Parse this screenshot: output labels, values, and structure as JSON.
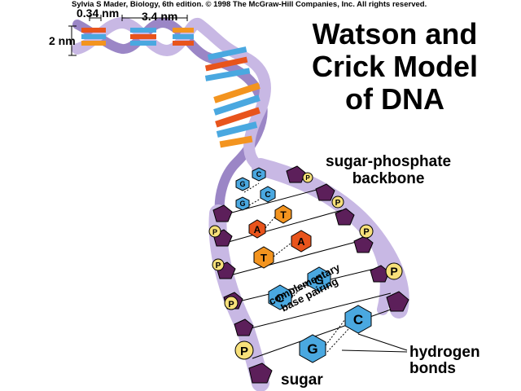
{
  "copyright": "Sylvia S Mader, Biology, 6th edition. © 1998  The McGraw-Hill Companies, Inc. All rights reserved.",
  "title": {
    "line1": "Watson and",
    "line2": "Crick Model",
    "line3": "of DNA"
  },
  "labels": {
    "backbone_line1": "sugar-phosphate",
    "backbone_line2": "backbone",
    "complementary_line1": "complementary",
    "complementary_line2": "base pairing",
    "hydrogen_line1": "hydrogen",
    "hydrogen_line2": "bonds",
    "sugar": "sugar"
  },
  "dimensions": {
    "width": "2 nm",
    "rise": "0.34 nm",
    "pitch": "3.4 nm"
  },
  "phosphate_symbol": "P",
  "base_pairs": [
    {
      "left": "G",
      "right": "C"
    },
    {
      "left": "G",
      "right": "C"
    },
    {
      "left": "A",
      "right": "T"
    },
    {
      "left": "T",
      "right": "A"
    },
    {
      "left": "C",
      "right": "G"
    },
    {
      "left": "G",
      "right": "C"
    }
  ],
  "colors": {
    "backbone_light": "#c8b8e4",
    "backbone_dark": "#9b86c6",
    "sugar": "#5c1f5a",
    "phosphate": "#f7e07a",
    "guanine_cytosine": "#4aa8e0",
    "adenine": "#e8541c",
    "thymine": "#f3941f"
  }
}
